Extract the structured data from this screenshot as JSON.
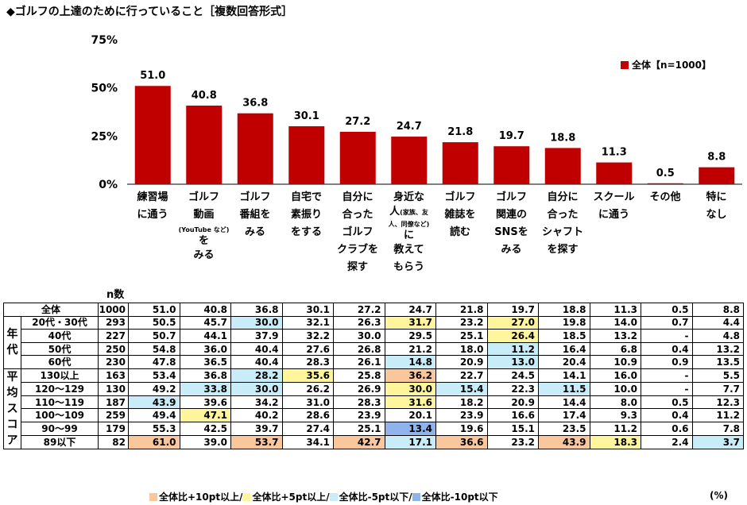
{
  "title": "◆ゴルフの上達のために行っていること［複数回答形式］",
  "legend": {
    "label": "全体【n=1000】",
    "color": "#c00000"
  },
  "chart_data": {
    "type": "bar",
    "categories": [
      "練習場に通う",
      "ゴルフ動画（YouTubeなど）をみる",
      "ゴルフ番組をみる",
      "自宅で素振りをする",
      "自分に合ったゴルフクラブを探す",
      "身近な人（家族、友人、同僚など）に教えてもらう",
      "ゴルフ雑誌を読む",
      "ゴルフ関連のSNSをみる",
      "自分に合ったシャフトを探す",
      "スクールに通う",
      "その他",
      "特になし"
    ],
    "series": [
      {
        "name": "全体【n=1000】",
        "values": [
          51.0,
          40.8,
          36.8,
          30.1,
          27.2,
          24.7,
          21.8,
          19.7,
          18.8,
          11.3,
          0.5,
          8.8
        ]
      }
    ],
    "ylim": [
      0,
      75
    ],
    "yticks": [
      "0%",
      "25%",
      "50%",
      "75%"
    ],
    "ytick_values": [
      0,
      25,
      50,
      75
    ],
    "value_labels": [
      "51.0",
      "40.8",
      "36.8",
      "30.1",
      "27.2",
      "24.7",
      "21.8",
      "19.7",
      "18.8",
      "11.3",
      "0.5",
      "8.8"
    ],
    "legend_position": "top-right",
    "grid": false
  },
  "categories_display": [
    {
      "lines": [
        "練習場",
        "に通う"
      ]
    },
    {
      "lines": [
        "ゴルフ",
        "動画"
      ],
      "small": "(YouTube など)",
      "tail": "を",
      "more": [
        "みる"
      ]
    },
    {
      "lines": [
        "ゴルフ",
        "番組を",
        "みる"
      ]
    },
    {
      "lines": [
        "自宅で",
        "素振り",
        "をする"
      ]
    },
    {
      "lines": [
        "自分に",
        "合った",
        "ゴルフ",
        "クラブを",
        "探す"
      ]
    },
    {
      "lines": [
        "身近な"
      ],
      "mixed": "人",
      "small": "(家族、友人、同僚など)",
      "tail": "に",
      "more": [
        "教えて",
        "もらう"
      ]
    },
    {
      "lines": [
        "ゴルフ",
        "雑誌を",
        "読む"
      ]
    },
    {
      "lines": [
        "ゴルフ",
        "関連の",
        "SNSを",
        "みる"
      ]
    },
    {
      "lines": [
        "自分に",
        "合った",
        "シャフト",
        "を探す"
      ]
    },
    {
      "lines": [
        "スクール",
        "に通う"
      ]
    },
    {
      "lines": [
        "その他"
      ]
    },
    {
      "lines": [
        "特に",
        "なし"
      ]
    }
  ],
  "table": {
    "n_header": "n数",
    "groups": {
      "age": "年代",
      "score": "平均スコア"
    },
    "rows": [
      {
        "label": "全体",
        "n": "1000",
        "values": [
          "51.0",
          "40.8",
          "36.8",
          "30.1",
          "27.2",
          "24.7",
          "21.8",
          "19.7",
          "18.8",
          "11.3",
          "0.5",
          "8.8"
        ],
        "hl": [
          "",
          "",
          "",
          "",
          "",
          "",
          "",
          "",
          "",
          "",
          "",
          ""
        ]
      },
      {
        "label": "20代・30代",
        "n": "293",
        "values": [
          "50.5",
          "45.7",
          "30.0",
          "32.1",
          "26.3",
          "31.7",
          "23.2",
          "27.0",
          "19.8",
          "14.0",
          "0.7",
          "4.4"
        ],
        "hl": [
          "",
          "",
          "l",
          "",
          "",
          "y",
          "",
          "y",
          "",
          "",
          "",
          ""
        ]
      },
      {
        "label": "40代",
        "n": "227",
        "values": [
          "50.7",
          "44.1",
          "37.9",
          "32.2",
          "30.0",
          "29.5",
          "25.1",
          "26.4",
          "18.5",
          "13.2",
          "-",
          "4.8"
        ],
        "hl": [
          "",
          "",
          "",
          "",
          "",
          "",
          "",
          "y",
          "",
          "",
          "",
          ""
        ]
      },
      {
        "label": "50代",
        "n": "250",
        "values": [
          "54.8",
          "36.0",
          "40.4",
          "27.6",
          "26.8",
          "21.2",
          "18.0",
          "11.2",
          "16.4",
          "6.8",
          "0.4",
          "13.2"
        ],
        "hl": [
          "",
          "",
          "",
          "",
          "",
          "",
          "",
          "l",
          "",
          "",
          "",
          ""
        ]
      },
      {
        "label": "60代",
        "n": "230",
        "values": [
          "47.8",
          "36.5",
          "40.4",
          "28.3",
          "26.1",
          "14.8",
          "20.9",
          "13.0",
          "20.4",
          "10.9",
          "0.9",
          "13.5"
        ],
        "hl": [
          "",
          "",
          "",
          "",
          "",
          "l",
          "",
          "l",
          "",
          "",
          "",
          ""
        ]
      },
      {
        "label": "130以上",
        "n": "163",
        "values": [
          "53.4",
          "36.8",
          "28.2",
          "35.6",
          "25.8",
          "36.2",
          "22.7",
          "24.5",
          "14.1",
          "16.0",
          "-",
          "5.5"
        ],
        "hl": [
          "",
          "",
          "l",
          "y",
          "",
          "o",
          "",
          "",
          "",
          "",
          "",
          ""
        ]
      },
      {
        "label": "120〜129",
        "n": "130",
        "values": [
          "49.2",
          "33.8",
          "30.0",
          "26.2",
          "26.9",
          "30.0",
          "15.4",
          "22.3",
          "11.5",
          "10.0",
          "-",
          "7.7"
        ],
        "hl": [
          "",
          "l",
          "l",
          "",
          "",
          "y",
          "l",
          "",
          "l",
          "",
          "",
          ""
        ]
      },
      {
        "label": "110〜119",
        "n": "187",
        "values": [
          "43.9",
          "39.6",
          "34.2",
          "31.0",
          "28.3",
          "31.6",
          "18.2",
          "20.9",
          "14.4",
          "8.0",
          "0.5",
          "12.3"
        ],
        "hl": [
          "l",
          "",
          "",
          "",
          "",
          "y",
          "",
          "",
          "",
          "",
          "",
          ""
        ]
      },
      {
        "label": "100〜109",
        "n": "259",
        "values": [
          "49.4",
          "47.1",
          "40.2",
          "28.6",
          "23.9",
          "20.1",
          "23.9",
          "16.6",
          "17.4",
          "9.3",
          "0.4",
          "11.2"
        ],
        "hl": [
          "",
          "y",
          "",
          "",
          "",
          "",
          "",
          "",
          "",
          "",
          "",
          ""
        ]
      },
      {
        "label": "90〜99",
        "n": "179",
        "values": [
          "55.3",
          "42.5",
          "39.7",
          "27.4",
          "25.1",
          "13.4",
          "19.6",
          "15.1",
          "23.5",
          "11.2",
          "0.6",
          "7.8"
        ],
        "hl": [
          "",
          "",
          "",
          "",
          "",
          "b",
          "",
          "",
          "",
          "",
          "",
          ""
        ]
      },
      {
        "label": "89以下",
        "n": "82",
        "values": [
          "61.0",
          "39.0",
          "53.7",
          "34.1",
          "42.7",
          "17.1",
          "36.6",
          "23.2",
          "43.9",
          "18.3",
          "2.4",
          "3.7"
        ],
        "hl": [
          "o",
          "",
          "o",
          "",
          "o",
          "l",
          "o",
          "",
          "o",
          "y",
          "",
          "l"
        ]
      }
    ]
  },
  "footer_legend": [
    {
      "label": "全体比+10pt以上/",
      "color": "#fac79c"
    },
    {
      "label": "全体比+5pt以上/",
      "color": "#fff59c"
    },
    {
      "label": "全体比-5pt以下/",
      "color": "#c8ecf8"
    },
    {
      "label": "全体比-10pt以下",
      "color": "#8fb3ea"
    }
  ],
  "unit": "(%)"
}
